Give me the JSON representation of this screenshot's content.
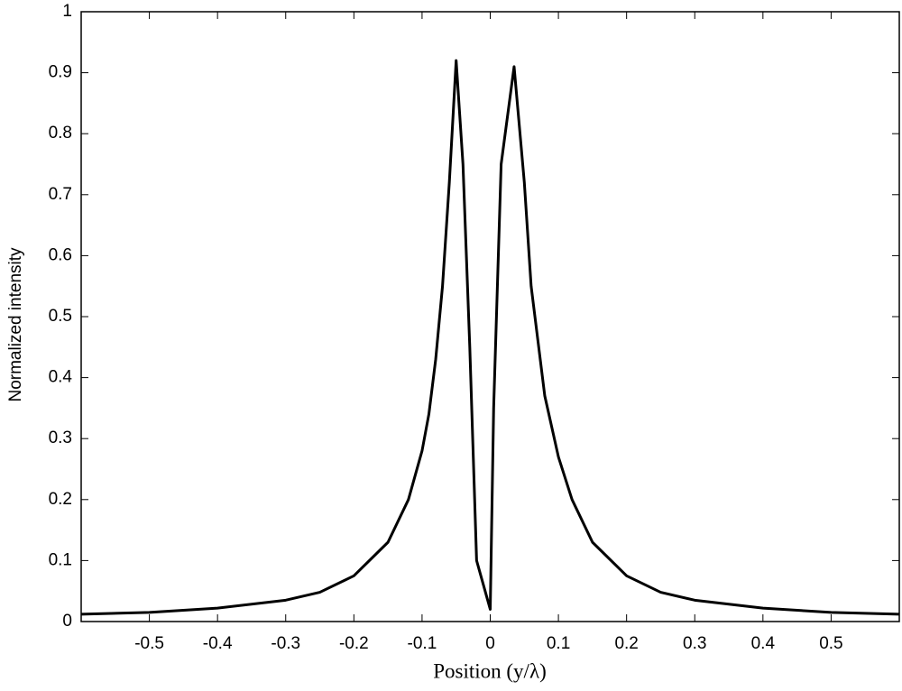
{
  "chart_data": {
    "type": "line",
    "x_label": "Position (y/λ)",
    "y_label": "Normalized intensity",
    "x": [
      -0.6,
      -0.5,
      -0.4,
      -0.3,
      -0.25,
      -0.2,
      -0.15,
      -0.12,
      -0.1,
      -0.09,
      -0.08,
      -0.07,
      -0.06,
      -0.05,
      -0.04,
      -0.03,
      -0.02,
      -0.01,
      0,
      0.005,
      0.016,
      0.035,
      0.05,
      0.06,
      0.08,
      0.1,
      0.12,
      0.15,
      0.2,
      0.25,
      0.3,
      0.4,
      0.5,
      0.6
    ],
    "series": [
      {
        "color": "#000000",
        "values": [
          0.012,
          0.015,
          0.022,
          0.035,
          0.048,
          0.075,
          0.13,
          0.2,
          0.28,
          0.34,
          0.43,
          0.55,
          0.72,
          0.92,
          0.75,
          0.45,
          0.1,
          0.06,
          0.02,
          0.35,
          0.75,
          0.91,
          0.72,
          0.55,
          0.37,
          0.27,
          0.2,
          0.13,
          0.075,
          0.048,
          0.035,
          0.022,
          0.015,
          0.012
        ]
      }
    ],
    "xlim": [
      -0.6,
      0.6
    ],
    "xticks": [
      -0.5,
      -0.4,
      -0.3,
      -0.2,
      -0.1,
      0,
      0.1,
      0.2,
      0.3,
      0.4,
      0.5
    ],
    "ylim": [
      0,
      1
    ],
    "yticks": [
      0,
      0.1,
      0.2,
      0.3,
      0.4,
      0.5,
      0.6,
      0.7,
      0.8,
      0.9,
      1
    ],
    "grid": false
  }
}
